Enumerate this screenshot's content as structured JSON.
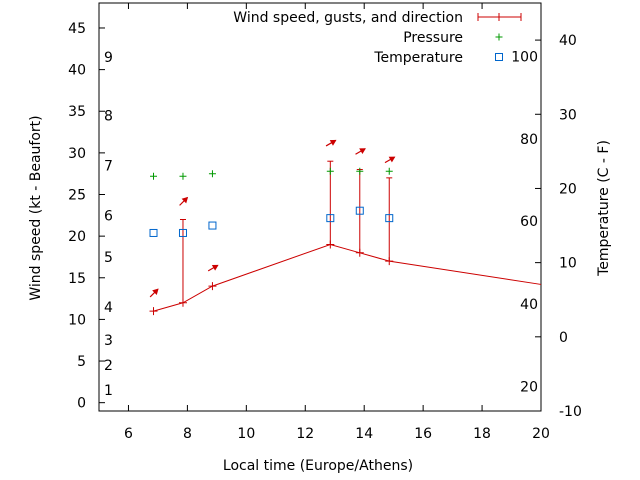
{
  "chart_data": {
    "type": "line",
    "xlabel": "Local time (Europe/Athens)",
    "ylabel": "Wind speed (kt - Beaufort)",
    "y2label": "Temperature (C - F)",
    "xlim": [
      5,
      20
    ],
    "ylim": [
      -1,
      48
    ],
    "y2lim": [
      -10,
      45
    ],
    "x_ticks": [
      6,
      8,
      10,
      12,
      14,
      16,
      18,
      20
    ],
    "y_ticks": [
      0,
      5,
      10,
      15,
      20,
      25,
      30,
      35,
      40,
      45
    ],
    "y2_ticks": [
      -10,
      0,
      10,
      20,
      30,
      40
    ],
    "beaufort_labels": [
      {
        "label": "1",
        "kt": 1.5
      },
      {
        "label": "2",
        "kt": 4.5
      },
      {
        "label": "3",
        "kt": 7.5
      },
      {
        "label": "4",
        "kt": 11.5
      },
      {
        "label": "5",
        "kt": 17.5
      },
      {
        "label": "6",
        "kt": 22.5
      },
      {
        "label": "7",
        "kt": 28.5
      },
      {
        "label": "8",
        "kt": 34.5
      },
      {
        "label": "9",
        "kt": 41.5
      }
    ],
    "fahrenheit_labels": [
      {
        "label": "20",
        "celsius": -6.7
      },
      {
        "label": "40",
        "celsius": 4.4
      },
      {
        "label": "60",
        "celsius": 15.6
      },
      {
        "label": "80",
        "celsius": 26.7
      },
      {
        "label": "100",
        "celsius": 37.8
      }
    ],
    "legend": {
      "position": "top-right",
      "items": [
        "Wind speed, gusts, and direction",
        "Pressure",
        "Temperature"
      ]
    },
    "series": [
      {
        "name": "Wind speed, gusts, and direction",
        "color": "#cc0000",
        "points": [
          {
            "x": 6.85,
            "y": 11,
            "gust": null,
            "dir_deg": 225
          },
          {
            "x": 7.85,
            "y": 12,
            "gust": 22,
            "dir_deg": 225
          },
          {
            "x": 8.85,
            "y": 14,
            "gust": null,
            "dir_deg": 240
          },
          {
            "x": 12.85,
            "y": 19,
            "gust": 29,
            "dir_deg": 240
          },
          {
            "x": 13.85,
            "y": 18,
            "gust": 28,
            "dir_deg": 240
          },
          {
            "x": 14.85,
            "y": 17,
            "gust": 27,
            "dir_deg": 240
          },
          {
            "x": 20,
            "y": 14.2,
            "gust": null,
            "dir_deg": null
          }
        ]
      },
      {
        "name": "Pressure",
        "color": "#009900",
        "points": [
          {
            "x": 6.85,
            "y": 27.2
          },
          {
            "x": 7.85,
            "y": 27.2
          },
          {
            "x": 8.85,
            "y": 27.5
          },
          {
            "x": 12.85,
            "y": 27.8
          },
          {
            "x": 13.85,
            "y": 27.8
          },
          {
            "x": 14.85,
            "y": 27.8
          }
        ]
      },
      {
        "name": "Temperature",
        "color": "#0066cc",
        "axis": "y2",
        "points": [
          {
            "x": 6.85,
            "y": 14
          },
          {
            "x": 7.85,
            "y": 14
          },
          {
            "x": 8.85,
            "y": 15
          },
          {
            "x": 12.85,
            "y": 16
          },
          {
            "x": 13.85,
            "y": 17
          },
          {
            "x": 14.85,
            "y": 16
          }
        ]
      }
    ]
  }
}
